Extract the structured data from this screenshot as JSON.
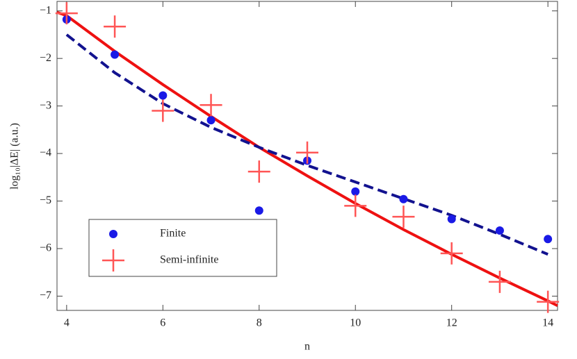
{
  "chart_data": {
    "type": "scatter",
    "xlabel": "n",
    "ylabel": "log₁₀|ΔE| (a.u.)",
    "xlim": [
      3.8,
      14.2
    ],
    "ylim": [
      -7.3,
      -0.8
    ],
    "xticks": [
      4,
      6,
      8,
      10,
      12,
      14
    ],
    "yticks": [
      -1,
      -2,
      -3,
      -4,
      -5,
      -6,
      -7
    ],
    "legend": "lower left",
    "series": [
      {
        "name": "Finite",
        "color": "#1a1ae6",
        "marker": "circle",
        "x": [
          4,
          5,
          6,
          7,
          8,
          9,
          10,
          11,
          12,
          13,
          14
        ],
        "values": [
          -1.18,
          -1.92,
          -2.78,
          -3.3,
          -5.2,
          -4.15,
          -4.8,
          -4.96,
          -5.38,
          -5.62,
          -5.8
        ]
      },
      {
        "name": "Semi-infinite",
        "color": "#ff5555",
        "marker": "plus",
        "x": [
          4,
          5,
          6,
          7,
          8,
          9,
          10,
          11,
          12,
          13,
          14
        ],
        "values": [
          -1.05,
          -1.33,
          -3.1,
          -2.98,
          -4.38,
          -3.98,
          -5.1,
          -5.33,
          -6.1,
          -6.7,
          -7.12
        ]
      },
      {
        "color": "#ee1111",
        "line": "solid",
        "x": [
          3.8,
          4,
          5,
          6,
          7,
          8,
          9,
          10,
          11,
          12,
          13,
          14,
          14.2
        ],
        "values": [
          -1.03,
          -1.1,
          -1.85,
          -2.55,
          -3.22,
          -3.87,
          -4.47,
          -5.05,
          -5.6,
          -6.12,
          -6.62,
          -7.1,
          -7.2
        ]
      },
      {
        "color": "#12128f",
        "line": "dashed",
        "x": [
          4,
          5,
          6,
          7,
          8,
          9,
          10,
          11,
          12,
          13,
          14
        ],
        "values": [
          -1.5,
          -2.3,
          -2.95,
          -3.45,
          -3.87,
          -4.25,
          -4.6,
          -4.95,
          -5.3,
          -5.7,
          -6.12
        ]
      }
    ]
  }
}
